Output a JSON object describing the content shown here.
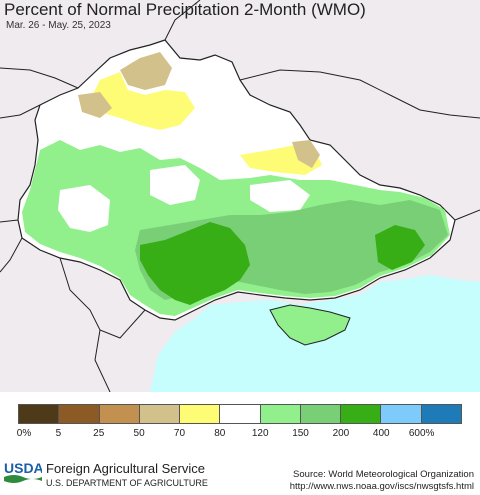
{
  "header": {
    "title": "Percent of Normal Precipitation 2-Month (WMO)",
    "date_range": "Mar. 26 - May. 25, 2023"
  },
  "legend": {
    "colors": [
      "#4e3a19",
      "#8c5a24",
      "#c29150",
      "#d2c18b",
      "#fefb74",
      "#ffffff",
      "#92f08c",
      "#78cf76",
      "#37ad16",
      "#7ccbfa",
      "#1f7ab8"
    ],
    "ticks": [
      "0%",
      "5",
      "25",
      "50",
      "70",
      "80",
      "120",
      "150",
      "200",
      "400",
      "600%"
    ]
  },
  "footer": {
    "org_name": "Foreign Agricultural Service",
    "org_dept": "U.S. DEPARTMENT OF AGRICULTURE",
    "logo_text": "USDA",
    "source_line": "Source: World Meteorological Organization",
    "source_url": "http://www.nws.noaa.gov/iscs/nwsgtsfs.html"
  },
  "colors": {
    "land_outside": "#efebef",
    "sea": "#c6fdfd",
    "border": "#222222",
    "usda_blue": "#1a5fa8",
    "usda_green": "#2e8b3e"
  }
}
